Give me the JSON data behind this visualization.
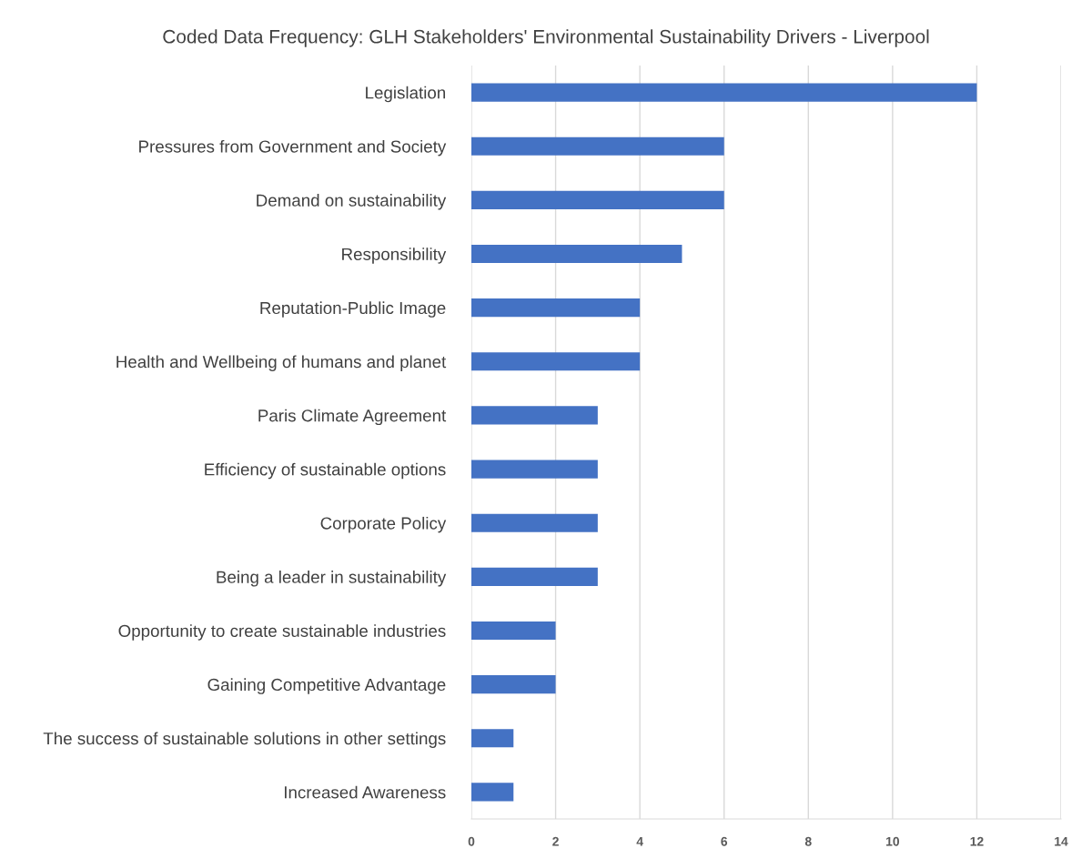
{
  "chart_data": {
    "type": "bar",
    "orientation": "horizontal",
    "title": "Coded Data Frequency: GLH Stakeholders' Environmental Sustainability Drivers - Liverpool",
    "categories": [
      "Legislation",
      "Pressures from Government and Society",
      "Demand on sustainability",
      "Responsibility",
      "Reputation-Public Image",
      "Health and Wellbeing of humans and planet",
      "Paris Climate Agreement",
      "Efficiency of sustainable options",
      "Corporate Policy",
      "Being a leader in sustainability",
      "Opportunity to create sustainable industries",
      "Gaining Competitive Advantage",
      "The success of sustainable solutions in other settings",
      "Increased Awareness"
    ],
    "values": [
      12,
      6,
      6,
      5,
      4,
      4,
      3,
      3,
      3,
      3,
      2,
      2,
      1,
      1
    ],
    "color": "#4472c4",
    "xlim": [
      0,
      14
    ],
    "xticks": [
      0,
      2,
      4,
      6,
      8,
      10,
      12,
      14
    ],
    "grid": "x"
  }
}
